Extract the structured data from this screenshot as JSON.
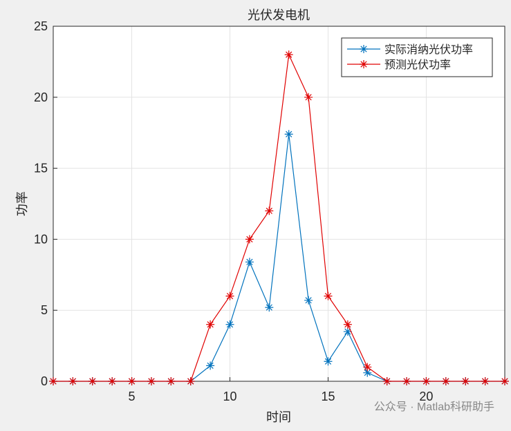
{
  "chart_data": {
    "type": "line",
    "title": "光伏发电机",
    "x_label": "时间",
    "y_label": "功率",
    "x": [
      1,
      2,
      3,
      4,
      5,
      6,
      7,
      8,
      9,
      10,
      11,
      12,
      13,
      14,
      15,
      16,
      17,
      18,
      19,
      20,
      21,
      22,
      23,
      24
    ],
    "series": [
      {
        "name": "实际消纳光伏功率",
        "color": "#0072bd",
        "values": [
          0,
          0,
          0,
          0,
          0,
          0,
          0,
          0,
          1.1,
          4.0,
          8.4,
          5.2,
          17.4,
          5.7,
          1.4,
          3.5,
          0.6,
          0,
          0,
          0,
          0,
          0,
          0,
          0
        ]
      },
      {
        "name": "预测光伏功率",
        "color": "#e00000",
        "values": [
          0,
          0,
          0,
          0,
          0,
          0,
          0,
          0,
          4,
          6,
          10,
          12,
          23,
          20,
          6,
          4,
          1,
          0,
          0,
          0,
          0,
          0,
          0,
          0
        ]
      }
    ],
    "xlim": [
      1,
      24
    ],
    "xticks": [
      5,
      10,
      15,
      20
    ],
    "ylim": [
      0,
      25
    ],
    "yticks": [
      0,
      5,
      10,
      15,
      20,
      25
    ],
    "grid": true,
    "legend": "top-right",
    "watermark": "公众号 · Matlab科研助手"
  }
}
